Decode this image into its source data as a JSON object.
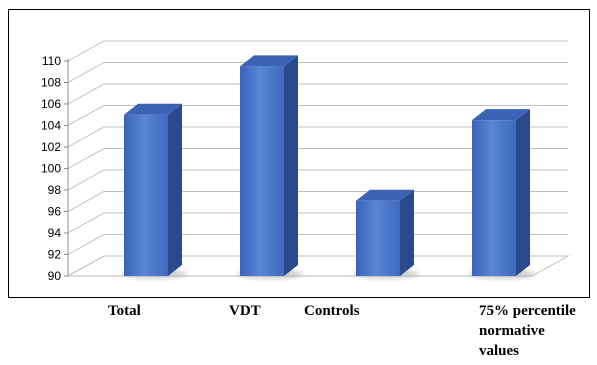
{
  "chart_data": {
    "type": "bar",
    "title": "",
    "xlabel": "",
    "ylabel": "",
    "categories": [
      "Total",
      "VDT",
      "Controls",
      "75% percentile\nnormative\nvalues"
    ],
    "values": [
      105,
      109.5,
      97,
      104.5
    ],
    "ylim": [
      90,
      110
    ],
    "yticks": [
      "90",
      "92",
      "94",
      "96",
      "98",
      "100",
      "102",
      "104",
      "106",
      "108",
      "110"
    ],
    "grid": true,
    "legend": "none",
    "style": "3d-column",
    "colors": {
      "bar_front": "#4a74c9",
      "bar_side": "#2b4a8c",
      "bar_top": "#3b62b5",
      "grid": "#bfbfbf"
    }
  }
}
